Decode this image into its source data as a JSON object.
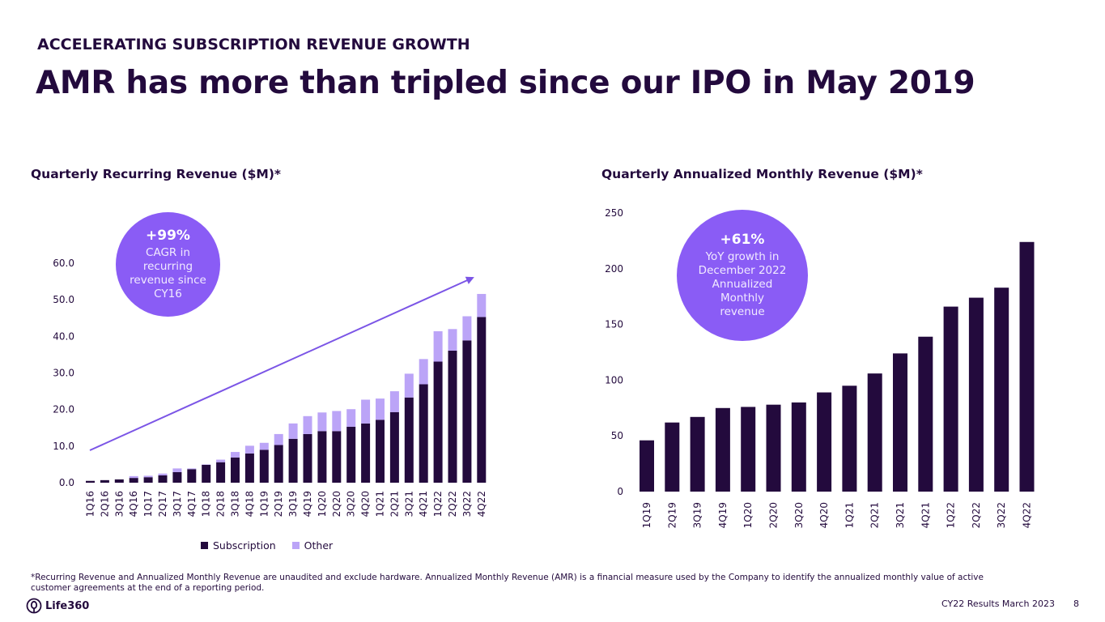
{
  "header": {
    "kicker": "ACCELERATING SUBSCRIPTION REVENUE GROWTH",
    "title": "AMR has more than tripled since our IPO in May 2019"
  },
  "colors": {
    "subscription": "#230a3d",
    "other": "#bba4f7",
    "accent": "#8a5cf5",
    "trend_line": "#7b55e6"
  },
  "callouts": {
    "left": {
      "value": "+99%",
      "text": "CAGR in\nrecurring\nrevenue since\nCY16"
    },
    "right": {
      "value": "+61%",
      "text": "YoY growth in\nDecember 2022\nAnnualized\nMonthly\nrevenue"
    }
  },
  "chart_data": [
    {
      "type": "bar",
      "stacked": true,
      "title": "Quarterly Recurring Revenue ($M)*",
      "xlabel": "",
      "ylabel": "",
      "ylim": [
        0,
        60
      ],
      "yticks": [
        "0.0",
        "10.0",
        "20.0",
        "30.0",
        "40.0",
        "50.0",
        "60.0"
      ],
      "grid": false,
      "legend": "bottom",
      "categories": [
        "1Q16",
        "2Q16",
        "3Q16",
        "4Q16",
        "1Q17",
        "2Q17",
        "3Q17",
        "4Q17",
        "1Q18",
        "2Q18",
        "3Q18",
        "4Q18",
        "1Q19",
        "2Q19",
        "3Q19",
        "4Q19",
        "1Q20",
        "2Q20",
        "3Q20",
        "4Q20",
        "1Q21",
        "2Q21",
        "3Q21",
        "4Q21",
        "1Q22",
        "2Q22",
        "3Q22",
        "4Q22"
      ],
      "series": [
        {
          "name": "Subscription",
          "values": [
            0.5,
            0.7,
            0.9,
            1.3,
            1.5,
            2.0,
            2.9,
            3.7,
            4.9,
            5.6,
            6.9,
            8.0,
            9.0,
            10.3,
            12.0,
            13.3,
            14.1,
            14.1,
            15.3,
            16.2,
            17.2,
            19.3,
            23.3,
            26.9,
            33.1,
            36.1,
            38.9,
            45.3
          ]
        },
        {
          "name": "Other",
          "values": [
            0.0,
            0.0,
            0.0,
            0.5,
            0.4,
            0.5,
            1.0,
            0.2,
            0.1,
            0.7,
            1.5,
            2.1,
            1.9,
            3.0,
            4.2,
            4.9,
            5.1,
            5.5,
            4.8,
            6.5,
            5.8,
            5.7,
            6.5,
            6.9,
            8.3,
            5.9,
            6.6,
            6.3
          ]
        }
      ],
      "annotations": [
        "trend arrow from 1Q16 to 4Q22"
      ]
    },
    {
      "type": "bar",
      "title": "Quarterly Annualized Monthly Revenue ($M)*",
      "xlabel": "",
      "ylabel": "",
      "ylim": [
        0,
        250
      ],
      "yticks": [
        "0",
        "50",
        "100",
        "150",
        "200",
        "250"
      ],
      "grid": false,
      "categories": [
        "1Q19",
        "2Q19",
        "3Q19",
        "4Q19",
        "1Q20",
        "2Q20",
        "3Q20",
        "4Q20",
        "1Q21",
        "2Q21",
        "3Q21",
        "4Q21",
        "1Q22",
        "2Q22",
        "3Q22",
        "4Q22"
      ],
      "values": [
        46,
        62,
        67,
        75,
        76,
        78,
        80,
        89,
        95,
        106,
        124,
        139,
        166,
        174,
        183,
        224
      ]
    }
  ],
  "legend": {
    "subscription": "Subscription",
    "other": "Other"
  },
  "footer": {
    "footnote": "*Recurring Revenue and Annualized Monthly Revenue are unaudited and exclude hardware. Annualized Monthly Revenue (AMR) is a financial measure used by the Company to identify the annualized monthly value of active customer agreements at the end of a reporting period.",
    "logo_text": "Life360",
    "date": "CY22 Results March 2023",
    "page": "8"
  }
}
